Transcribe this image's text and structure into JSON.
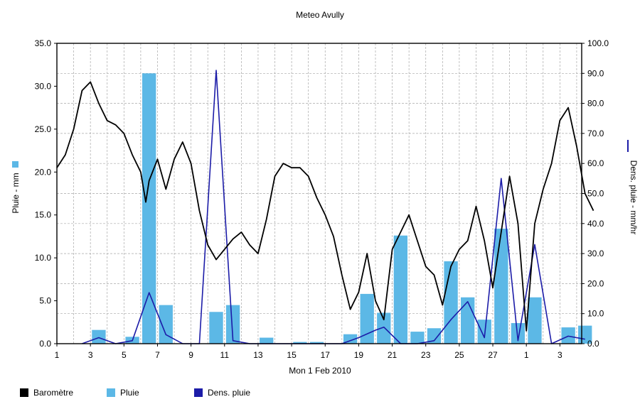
{
  "chart_data": {
    "type": "bar+line",
    "title": "Meteo  Avully",
    "xlabel": "Mon 1 Feb 2010",
    "ylabel_left": "Pluie - mm",
    "ylabel_right": "Dens. pluie - mm/hr",
    "ylim_left": [
      0,
      35
    ],
    "ylim_right": [
      0,
      100
    ],
    "x_ticks": [
      "1",
      "3",
      "5",
      "7",
      "9",
      "11",
      "13",
      "15",
      "17",
      "19",
      "21",
      "23",
      "25",
      "27",
      "1",
      "3"
    ],
    "y_left_ticks": [
      "0.0",
      "5.0",
      "10.0",
      "15.0",
      "20.0",
      "25.0",
      "30.0",
      "35.0"
    ],
    "y_right_ticks": [
      "0.0",
      "10.0",
      "20.0",
      "30.0",
      "40.0",
      "50.0",
      "60.0",
      "70.0",
      "80.0",
      "90.0",
      "100.0"
    ],
    "grid": true,
    "legend": [
      {
        "label": "Baromètre",
        "color": "#000000"
      },
      {
        "label": "Pluie",
        "color": "#5cb8e6"
      },
      {
        "label": "Dens. pluie",
        "color": "#1c1ca8"
      }
    ],
    "series": [
      {
        "name": "Pluie",
        "type": "bar",
        "axis": "left",
        "x": [
          2.5,
          4.5,
          5.5,
          6.5,
          9.5,
          10.5,
          12.5,
          14.5,
          15.5,
          17.5,
          18.5,
          19.5,
          20.5,
          21.5,
          22.5,
          23.5,
          24.5,
          25.5,
          26.5,
          27.5,
          28.5,
          30.5,
          31.5
        ],
        "values": [
          1.6,
          0.8,
          31.5,
          4.5,
          3.7,
          4.5,
          0.7,
          0.2,
          0.2,
          1.1,
          5.8,
          3.6,
          12.6,
          1.4,
          1.8,
          9.6,
          5.4,
          2.8,
          13.4,
          2.4,
          5.4,
          1.9,
          2.1
        ]
      },
      {
        "name": "Dens. pluie",
        "type": "line",
        "axis": "right",
        "x": [
          1.5,
          2.5,
          3.5,
          4.5,
          5.5,
          6.5,
          7.5,
          8.0,
          8.5,
          9.5,
          10.5,
          11.5,
          12.0,
          13.0,
          14.0,
          15.0,
          16.0,
          17.0,
          18.0,
          19.0,
          19.5,
          20.5,
          21.5,
          22.5,
          23.5,
          24.5,
          25.5,
          26.5,
          27.5,
          28.5,
          29.5,
          30.5,
          31.5
        ],
        "values": [
          0,
          2,
          0,
          1,
          17,
          3,
          0,
          0,
          0,
          91,
          1,
          0,
          0,
          0,
          0,
          0,
          0,
          0,
          2,
          4.5,
          5.5,
          0,
          0,
          1,
          8,
          14,
          2,
          55,
          1,
          33,
          0,
          2.5,
          1.5
        ]
      },
      {
        "name": "Baromètre",
        "type": "line",
        "axis": "left",
        "x": [
          0,
          0.5,
          1,
          1.5,
          2,
          2.5,
          3,
          3.5,
          4,
          4.5,
          5,
          5.3,
          5.5,
          6,
          6.5,
          7,
          7.5,
          8,
          8.5,
          9,
          9.5,
          10,
          10.5,
          11,
          11.5,
          12,
          12.5,
          13,
          13.5,
          14,
          14.5,
          15,
          15.5,
          16,
          16.5,
          17,
          17.5,
          18,
          18.5,
          19,
          19.5,
          20,
          20.5,
          21,
          21.5,
          22,
          22.5,
          23,
          23.5,
          24,
          24.5,
          25,
          25.5,
          26,
          26.5,
          27,
          27.5,
          28,
          28.5,
          29,
          29.5,
          30,
          30.5,
          31,
          31.5,
          32
        ],
        "values": [
          20.5,
          22,
          25,
          29.5,
          30.5,
          28,
          26,
          25.5,
          24.5,
          22,
          20,
          16.5,
          19,
          21.5,
          18,
          21.5,
          23.5,
          21,
          15.5,
          11.5,
          9.8,
          11,
          12.2,
          13,
          11.5,
          10.5,
          14.5,
          19.5,
          21,
          20.5,
          20.5,
          19.5,
          17,
          15,
          12.5,
          8,
          4,
          6,
          10.5,
          5,
          2.8,
          11,
          13,
          15,
          12,
          9,
          8,
          4.5,
          9,
          11,
          12,
          16,
          12,
          6.5,
          13,
          19.5,
          14,
          1.5,
          14,
          18,
          21,
          26,
          27.5,
          23,
          17.5,
          15.5
        ]
      }
    ]
  }
}
